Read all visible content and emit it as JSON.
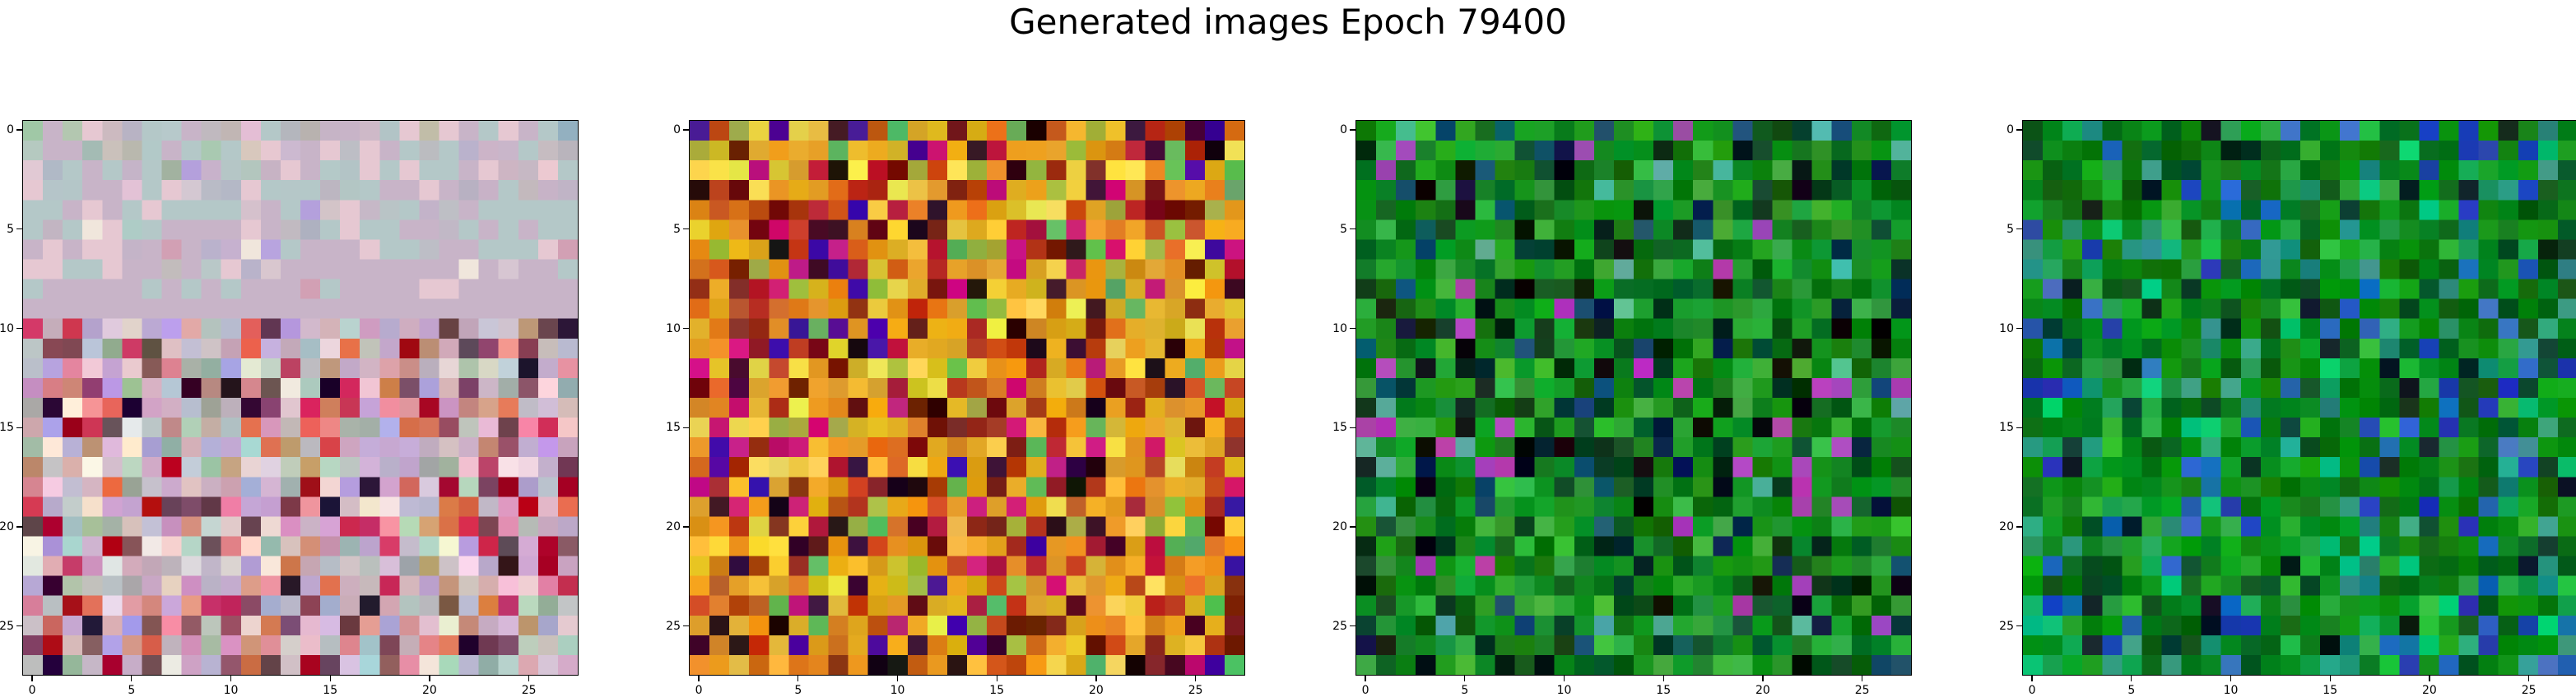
{
  "title": "Generated images Epoch 79400",
  "chart_data": [
    {
      "type": "heatmap",
      "grid_size": [
        28,
        28
      ],
      "xlim": [
        -0.5,
        27.5
      ],
      "ylim": [
        27.5,
        -0.5
      ],
      "x_ticks": [
        "0",
        "5",
        "10",
        "15",
        "20",
        "25"
      ],
      "y_ticks": [
        "0",
        "5",
        "10",
        "15",
        "20",
        "25"
      ],
      "palette": [
        "#c8b4c8",
        "#e6c8d2",
        "#b4c8c8",
        "#d2a0b4",
        "#c89678",
        "#e68c96",
        "#a0b4a0",
        "#f0e6dc",
        "#8c5064",
        "#c8325a",
        "#dc6e50",
        "#b4a0dc",
        "#6e4650",
        "#2a0a2a",
        "#aa0020"
      ],
      "pixel_hex": [
        "#a0c8a6",
        "#c8b4c8",
        "#b3c7b0",
        "#e6c8d2",
        "#ccbac0",
        "#b8b3c4",
        "#b4c8c8",
        "#b7c9cb",
        "#c8b4c8",
        "#c0b9bf",
        "#c1b6b4",
        "#e4bed5",
        "#b4c8c8",
        "#b4b6bd",
        "#b8b2af",
        "#c6b4c6",
        "#c8b4c8",
        "#ceb9c8",
        "#b2c4c6",
        "#e6c8d2",
        "#c1bda8",
        "#e6c8d2",
        "#c8b4c8",
        "#b4c8c8",
        "#e6c8d2",
        "#c8b4c8",
        "#b4c8c8",
        "#93b0c0",
        "#b5c9c0",
        "#c8b4c8",
        "#c8b4c8",
        "#a4bbb4",
        "#cac1bb",
        "#b9b8ae",
        "#b2c9c8",
        "#c8b4c8",
        "#b4c8c8",
        "#a9c9b1",
        "#b4c8c8",
        "#d8c8bd",
        "#e7c8d1",
        "#ccb9d0",
        "#c8b4c8",
        "#e6c8d2",
        "#bdbec5",
        "#e6c8d2",
        "#c8b4c8",
        "#b4c8c8",
        "#bbbcc0",
        "#b4c8c8",
        "#bab2cc",
        "#ccb4c8",
        "#c9b6ca",
        "#b4c8c8",
        "#c6bcc1",
        "#b9b4bc",
        "#e1c9d4",
        "#b0b9c6",
        "#b4c8c8",
        "#c8b4c8",
        "#b4c8c8",
        "#c5b4c8",
        "#b4c8c8",
        "#a2b2a0",
        "#b4a0dc",
        "#c8b2cb",
        "#b5c6c6",
        "#b3c6be",
        "#c7b3c4",
        "#e6c8d2",
        "#c8b4c8",
        "#b4c9c8",
        "#b3c4c6",
        "#e6c8d2",
        "#b4c8c8",
        "#e6c8d2",
        "#b4c8c8",
        "#b4c8c8",
        "#c8b4c8",
        "#e6c8d2",
        "#cdb5c3",
        "#c6b8c4",
        "#ecc9d1",
        "#b4c8c8",
        "#e6c8d2",
        "#b5c5c9",
        "#b4c6c8",
        "#c8b4c8",
        "#c8b4c8",
        "#e3c2d6",
        "#b4c8c8",
        "#e6c8d2",
        "#d4c8d2",
        "#b9bbc6",
        "#b4b8c6",
        "#e6c8d2",
        "#b4c8c8",
        "#b5c7c8",
        "#b4c8c8",
        "#bcb6c1",
        "#b3c6c4",
        "#b4c8c8",
        "#c8b4c8",
        "#c8b4c8",
        "#e6c8d2",
        "#c8b4c8",
        "#b8b1c2",
        "#c8b2c7",
        "#b4c8c8",
        "#c3b9bd",
        "#c7b3c7",
        "#c0b4c6",
        "#b4c8c8",
        "#b4c8c8",
        "#c8b4c8",
        "#e6c8d2",
        "#c8b4c8",
        "#b4c8c8",
        "#e6c8d2",
        "#b4c8c8",
        "#b4c8c8",
        "#b4c8c8",
        "#b4c8c8",
        "#d5c1cc",
        "#c8b4c8",
        "#b4c8c8",
        "#b4a0dc",
        "#d3c4c8",
        "#e6c8d2",
        "#c6b8c7",
        "#b9c4c6",
        "#b4c8c8",
        "#c3b3c9",
        "#bebfc5",
        "#c8b4c8",
        "#b4c8c8",
        "#b4c8c8",
        "#b4c8c8",
        "#b4c8c8",
        "#b4c8c8",
        "#b4c8c8",
        "#c2b5c2",
        "#b4c8c8",
        "#f0e6dc",
        "#e6c8d2",
        "#aeccc6",
        "#b4c8c8",
        "#c8b4c8",
        "#c8b4c8",
        "#c8b4c8",
        "#c8b4c8",
        "#e6c8d2",
        "#c8b4c8",
        "#c1bac1",
        "#aeb1c0",
        "#b4c8c8",
        "#e6c8d2",
        "#b4c8c8",
        "#b4c8c8",
        "#c8b4c8",
        "#c8b4c8",
        "#c1b8c6",
        "#b4c8c8",
        "#c8b4c8",
        "#b4c8c8",
        "#c8b4c8",
        "#b4c8c8",
        "#b4c8c8",
        "#c8b4c8",
        "#e6c8d2",
        "#c8b4c8",
        "#e6c8d2",
        "#e6c8d2",
        "#c4b4c8",
        "#c8b4c8",
        "#d2a0b4",
        "#c8b4c8",
        "#bab2cc",
        "#c6b1cf",
        "#f0e6dc",
        "#b8a4df",
        "#b4c8c8",
        "#c8b4c8",
        "#c8b4c8",
        "#c8b4c8",
        "#e6c8d2",
        "#b4c8c8",
        "#b4c8c8",
        "#bdbec6",
        "#c8b4c8",
        "#c8b4c8",
        "#b4c8c8",
        "#b4c8c8",
        "#b4c8c8",
        "#e6c8d2",
        "#d2a0b4",
        "#e6c8d2",
        "#e6c8d2",
        "#b4c8c8",
        "#b4c8c8",
        "#e6c8d2",
        "#c8b4c8",
        "#c8b4c8",
        "#c2bcbc",
        "#c8b4c8",
        "#b9c8c8",
        "#e6c8d2",
        "#b9b3ca",
        "#d9c7cf",
        "#c8b4c8",
        "#c8b4c8",
        "#c8b4c8",
        "#c8b4c8",
        "#c8b4c8",
        "#c8b4c8",
        "#c8b4c8",
        "#c8b4c8",
        "#c8b4c8",
        "#f0e6dc",
        "#c8b4c8",
        "#d7c6d2",
        "#c8b4c8",
        "#c8b4c8",
        "#b4c8c8",
        "#b4c8c8",
        "#c8b4c8",
        "#c8b4c8",
        "#c8b4c8",
        "#c8b4c8",
        "#c8b4c8",
        "#b4c8c8",
        "#c8b4c8",
        "#b4c8c8",
        "#c8b4c8",
        "#b4c8c8",
        "#c8b4c8",
        "#c8b4c8",
        "#c8b4c8",
        "#d2a0b4",
        "#b4c8c8",
        "#c8b4c8",
        "#c8b4c8",
        "#c8b4c8",
        "#c8b4c8",
        "#e6c8d2",
        "#e6c8d2",
        "#c8b4c8",
        "#c8b4c8",
        "#c8b4c8",
        "#c8b4c8",
        "#c8b4c8",
        "#c8b4c8",
        "#c8b4c8",
        "#c8b4c8",
        "#c8b4c8",
        "#c8b4c8",
        "#c8b4c8",
        "#c8b4c8",
        "#c8b4c8",
        "#c8b4c8",
        "#c8b4c8",
        "#c8b4c8",
        "#c8b4c8",
        "#c8b4c8",
        "#c8b4c8",
        "#c8b4c8",
        "#c8b4c8",
        "#c8b4c8",
        "#c8b4c8",
        "#c8b4c8",
        "#c8b4c8",
        "#c8b4c8",
        "#c8b4c8",
        "#c8b4c8",
        "#c8b4c8",
        "#c8b4c8",
        "#c8b4c8",
        "#c8b4c8",
        "#c8b4c8",
        "#c8b4c8"
      ]
    },
    {
      "type": "heatmap",
      "grid_size": [
        28,
        28
      ],
      "xlim": [
        -0.5,
        27.5
      ],
      "ylim": [
        27.5,
        -0.5
      ],
      "x_ticks": [
        "0",
        "5",
        "10",
        "15",
        "20",
        "25"
      ],
      "y_ticks": [
        "0",
        "5",
        "10",
        "15",
        "20",
        "25"
      ],
      "palette": [
        "#e6a01e",
        "#dc781e",
        "#f0c83c",
        "#c8501e",
        "#b43214",
        "#dcb428",
        "#a0b43c",
        "#f5e150",
        "#b41e32",
        "#c81478",
        "#8c281e",
        "#6e140a",
        "#3c0a32",
        "#1e0a0a",
        "#460aa0",
        "#5ab45a"
      ]
    },
    {
      "type": "heatmap",
      "grid_size": [
        28,
        28
      ],
      "xlim": [
        -0.5,
        27.5
      ],
      "ylim": [
        27.5,
        -0.5
      ],
      "x_ticks": [
        "0",
        "5",
        "10",
        "15",
        "20",
        "25"
      ],
      "y_ticks": [
        "0",
        "5",
        "10",
        "15",
        "20",
        "25"
      ],
      "palette": [
        "#128c1e",
        "#0a7814",
        "#1ea028",
        "#28a032",
        "#0a6414",
        "#0a5a1e",
        "#3cb43c",
        "#0a4628",
        "#0a321e",
        "#06200a",
        "#0a0a0a",
        "#14506e",
        "#0a1e46",
        "#50b4a0",
        "#aa3cb4"
      ]
    },
    {
      "type": "heatmap",
      "grid_size": [
        28,
        28
      ],
      "xlim": [
        -0.5,
        27.5
      ],
      "ylim": [
        27.5,
        -0.5
      ],
      "x_ticks": [
        "0",
        "5",
        "10",
        "15",
        "20",
        "25"
      ],
      "y_ticks": [
        "0",
        "5",
        "10",
        "15",
        "20",
        "25"
      ],
      "palette": [
        "#0a8c14",
        "#0a7814",
        "#14a01e",
        "#0a6414",
        "#1ea050",
        "#0a5a1e",
        "#28b43c",
        "#0a462d",
        "#1e8c78",
        "#32a08c",
        "#1e3cb4",
        "#1464b4",
        "#0a1e1e",
        "#3c6ec8",
        "#00c878"
      ]
    }
  ]
}
